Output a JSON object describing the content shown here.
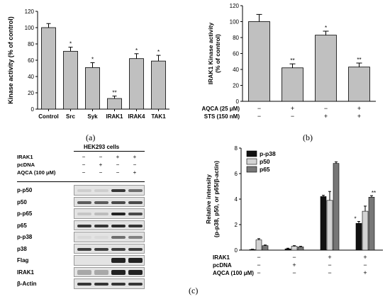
{
  "panels": {
    "a": {
      "letter": "(a)",
      "chart_data": {
        "type": "bar",
        "ylabel": "Kinase activity  (% of control)",
        "ylim": [
          0,
          120
        ],
        "yticks": [
          0,
          20,
          40,
          60,
          80,
          100,
          120
        ],
        "categories": [
          "Control",
          "Src",
          "Syk",
          "IRAK1",
          "IRAK4",
          "TAK1"
        ],
        "values": [
          100,
          71,
          51,
          13,
          62,
          59
        ],
        "errors": [
          5,
          5,
          6,
          3,
          6,
          7
        ],
        "significance": [
          "",
          "*",
          "*",
          "**",
          "*",
          "*"
        ],
        "bar_color": "#c0c0c0"
      }
    },
    "b": {
      "letter": "(b)",
      "chart_data": {
        "type": "bar",
        "ylabel": "IRAK1 Kinase activity (% of control)",
        "ylim": [
          0,
          120
        ],
        "yticks": [
          0,
          20,
          40,
          60,
          80,
          100,
          120
        ],
        "values": [
          100,
          42,
          83,
          43
        ],
        "errors": [
          9,
          5,
          5,
          5
        ],
        "significance": [
          "",
          "**",
          "*",
          "**"
        ],
        "bar_color": "#c0c0c0",
        "conditions": [
          {
            "label": "AQCA (25 μM)",
            "signs": [
              "−",
              "+",
              "−",
              "+"
            ]
          },
          {
            "label": "STS (150 nM)",
            "signs": [
              "−",
              "−",
              "+",
              "+"
            ]
          }
        ]
      }
    },
    "c_blot": {
      "cell_line": "HEK293 cells",
      "conditions": [
        {
          "label": "IRAK1",
          "signs": [
            "−",
            "−",
            "+",
            "+"
          ]
        },
        {
          "label": "pcDNA",
          "signs": [
            "−",
            "+",
            "−",
            "−"
          ]
        },
        {
          "label": "AQCA (100 μM)",
          "signs": [
            "−",
            "−",
            "−",
            "+"
          ]
        }
      ],
      "rows": [
        "p-p50",
        "p50",
        "p-p65",
        "p65",
        "p-p38",
        "p38",
        "Flag",
        "IRAK1",
        "β-Actin"
      ]
    },
    "c_chart": {
      "letter": "(c)",
      "chart_data": {
        "type": "bar",
        "ylabel": "Relative intensity",
        "ylabel2": "(p-p38, p50, or p65/β-actin)",
        "ylim": [
          0,
          8
        ],
        "yticks": [
          0,
          2,
          4,
          6,
          8
        ],
        "series": [
          {
            "name": "p-p38",
            "color": "#111111",
            "values": [
              0.05,
              0.1,
              4.2,
              2.1
            ],
            "errors": [
              0.02,
              0.05,
              0.1,
              0.15
            ],
            "significance": [
              "",
              "",
              "",
              "*"
            ]
          },
          {
            "name": "p50",
            "color": "#d3d3d3",
            "values": [
              0.8,
              0.3,
              3.9,
              3.05
            ],
            "errors": [
              0.1,
              0.05,
              0.7,
              0.4
            ],
            "significance": [
              "",
              "",
              "",
              ""
            ]
          },
          {
            "name": "p65",
            "color": "#777777",
            "values": [
              0.35,
              0.25,
              6.8,
              4.15
            ],
            "errors": [
              0.05,
              0.05,
              0.12,
              0.12
            ],
            "significance": [
              "",
              "",
              "",
              "**"
            ]
          }
        ],
        "conditions": [
          {
            "label": "IRAK1",
            "signs": [
              "−",
              "−",
              "+",
              "+"
            ]
          },
          {
            "label": "pcDNA",
            "signs": [
              "−",
              "+",
              "−",
              "−"
            ]
          },
          {
            "label": "AQCA (100 μM)",
            "signs": [
              "−",
              "−",
              "−",
              "+"
            ]
          }
        ],
        "legend_position": "top-left"
      }
    }
  }
}
